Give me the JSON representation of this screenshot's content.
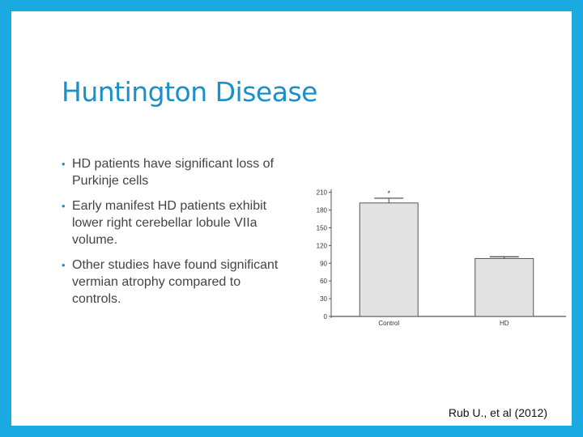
{
  "slide": {
    "title": "Huntington Disease",
    "bullets": [
      "HD patients have significant loss of Purkinje cells",
      "Early manifest HD patients exhibit lower right cerebellar lobule VIIa volume.",
      "Other studies have found significant vermian atrophy compared to controls."
    ],
    "citation": "Rub U., et al (2012)",
    "colors": {
      "frame": "#1aa9e0",
      "title": "#1a8fc8",
      "bar_fill": "#e2e2e2"
    }
  },
  "chart_data": {
    "type": "bar",
    "categories": [
      "Control",
      "HD"
    ],
    "values": [
      192,
      98
    ],
    "error": [
      8,
      3
    ],
    "annotations": [
      {
        "category": "Control",
        "text": "*"
      }
    ],
    "yticks": [
      0,
      30,
      60,
      90,
      120,
      150,
      180,
      210
    ],
    "ylim": [
      0,
      215
    ],
    "title": "",
    "xlabel": "",
    "ylabel": "",
    "grid": false,
    "legend": "none"
  }
}
